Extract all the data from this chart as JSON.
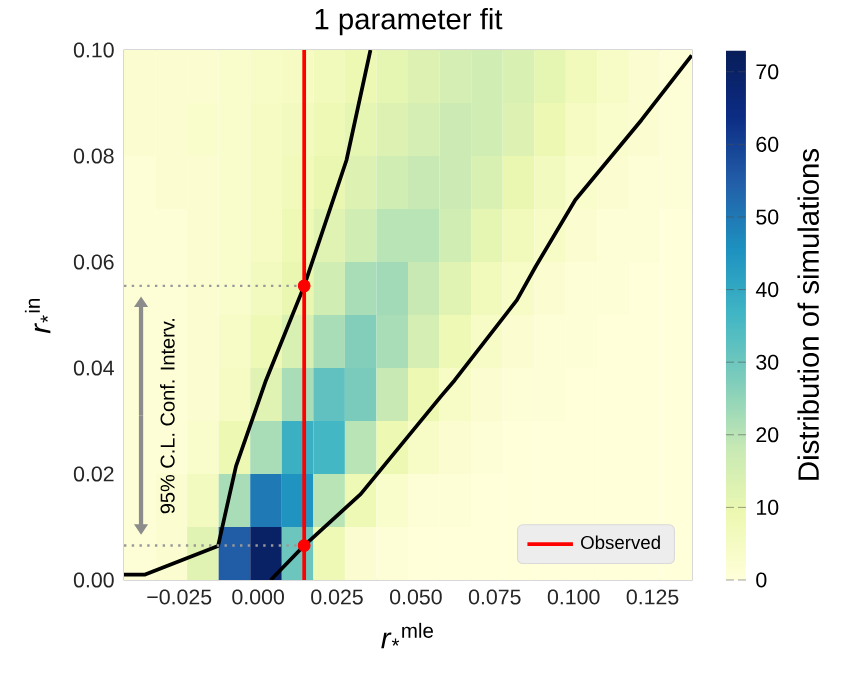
{
  "chart_data": {
    "type": "heatmap",
    "title": "1 parameter fit",
    "xlabel": "*r*$_{*}$$^{mle}$",
    "ylabel": "*r*$_{*}$$^{in}$",
    "clabel": "Distribution of simulations",
    "xlim": [
      -0.0425,
      0.1375
    ],
    "ylim": [
      0,
      0.1
    ],
    "xticks": [
      {
        "value": -0.025,
        "label": "−0.025"
      },
      {
        "value": 0,
        "label": "0.000"
      },
      {
        "value": 0.025,
        "label": "0.025"
      },
      {
        "value": 0.05,
        "label": "0.050"
      },
      {
        "value": 0.075,
        "label": "0.075"
      },
      {
        "value": 0.1,
        "label": "0.100"
      },
      {
        "value": 0.125,
        "label": "0.125"
      }
    ],
    "yticks": [
      {
        "value": 0,
        "label": "0.00"
      },
      {
        "value": 0.02,
        "label": "0.02"
      },
      {
        "value": 0.04,
        "label": "0.04"
      },
      {
        "value": 0.06,
        "label": "0.06"
      },
      {
        "value": 0.08,
        "label": "0.08"
      },
      {
        "value": 0.1,
        "label": "0.10"
      }
    ],
    "clim": [
      0,
      73
    ],
    "cticks": [
      0,
      10,
      20,
      30,
      40,
      50,
      60,
      70
    ],
    "cells": [
      [
        2,
        2,
        2,
        3,
        4,
        5,
        7,
        9,
        11,
        13,
        15,
        16,
        14,
        11,
        7,
        4,
        2,
        1
      ],
      [
        2,
        2,
        3,
        3,
        5,
        6,
        8,
        11,
        13,
        15,
        17,
        16,
        13,
        9,
        5,
        3,
        2,
        1
      ],
      [
        1,
        2,
        2,
        3,
        5,
        7,
        10,
        13,
        16,
        18,
        17,
        14,
        10,
        6,
        3,
        2,
        1,
        1
      ],
      [
        1,
        1,
        2,
        3,
        5,
        8,
        12,
        16,
        20,
        20,
        16,
        11,
        7,
        4,
        2,
        1,
        1,
        0
      ],
      [
        1,
        1,
        2,
        3,
        6,
        10,
        16,
        22,
        23,
        18,
        12,
        7,
        4,
        2,
        1,
        1,
        0,
        0
      ],
      [
        1,
        1,
        2,
        4,
        8,
        14,
        22,
        27,
        22,
        15,
        8,
        4,
        2,
        1,
        1,
        0,
        0,
        0
      ],
      [
        1,
        1,
        2,
        5,
        12,
        22,
        32,
        28,
        18,
        9,
        4,
        2,
        1,
        1,
        0,
        0,
        0,
        0
      ],
      [
        1,
        1,
        3,
        9,
        22,
        38,
        36,
        20,
        9,
        4,
        2,
        1,
        0,
        0,
        0,
        0,
        0,
        0
      ],
      [
        1,
        2,
        6,
        22,
        50,
        45,
        20,
        8,
        3,
        1,
        1,
        0,
        0,
        0,
        0,
        0,
        0,
        0
      ],
      [
        1,
        2,
        12,
        55,
        70,
        30,
        8,
        2,
        1,
        0,
        0,
        0,
        0,
        0,
        0,
        0,
        0,
        0
      ]
    ],
    "series": [
      {
        "type": "line",
        "color": "#000000",
        "x": [
          -0.0425,
          -0.036,
          -0.0127,
          -0.007,
          0.0025,
          0.0146,
          0.028,
          0.0356
        ],
        "values": [
          0.001,
          0.001,
          0.0064,
          0.0215,
          0.0377,
          0.0555,
          0.0792,
          0.1
        ]
      },
      {
        "type": "line",
        "color": "#000000",
        "x": [
          0.004,
          0.0146,
          0.0325,
          0.058,
          0.0623,
          0.082,
          0.088,
          0.1005,
          0.1215,
          0.1374
        ],
        "values": [
          0,
          0.0065,
          0.0162,
          0.0347,
          0.0377,
          0.0528,
          0.0592,
          0.0717,
          0.0868,
          0.099
        ]
      },
      {
        "type": "line",
        "color": "#999999",
        "line_style": "dotted",
        "x": [
          -0.0425,
          0.0146
        ],
        "values": [
          0.0555,
          0.0555
        ]
      },
      {
        "type": "line",
        "color": "#999999",
        "line_style": "dotted",
        "x": [
          -0.0425,
          0.0146
        ],
        "values": [
          0.0065,
          0.0065
        ]
      },
      {
        "name": "Observed",
        "type": "line",
        "color": "#ff0000",
        "x": [
          0.0146,
          0.0146
        ],
        "values": [
          0,
          0.1
        ]
      },
      {
        "type": "scatter",
        "color": "#ff0000",
        "x": [
          0.0146,
          0.0146
        ],
        "values": [
          0.0555,
          0.0065
        ]
      }
    ],
    "annotations": [
      "95% C.L. Conf. Interv."
    ],
    "legend": "bottom right",
    "grid": false
  }
}
